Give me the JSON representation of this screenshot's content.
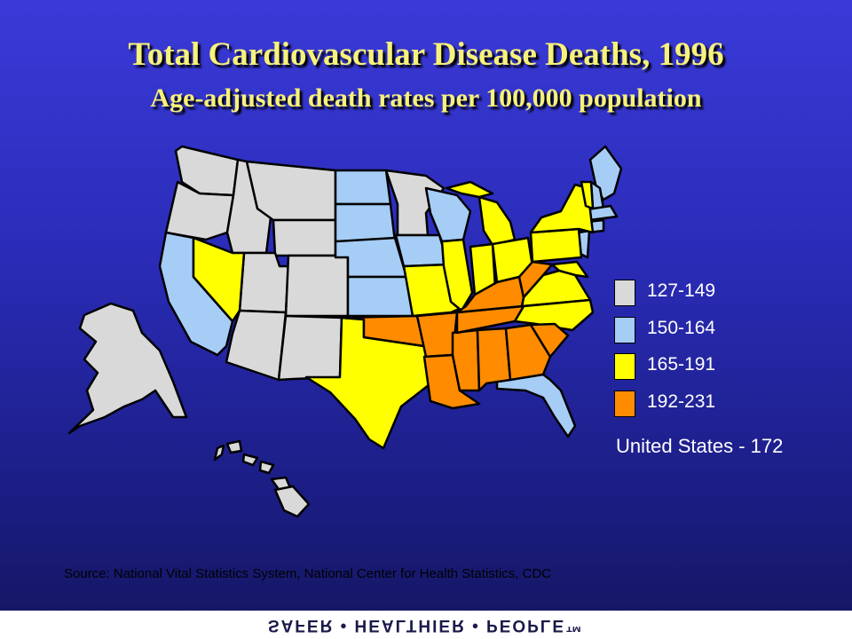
{
  "title": "Total Cardiovascular Disease Deaths, 1996",
  "subtitle": "Age-adjusted death rates per 100,000 population",
  "colors": {
    "c1": "#d9d9d9",
    "c2": "#a6cdf6",
    "c3": "#ffff00",
    "c4": "#ff8c00"
  },
  "legend": [
    {
      "label": "127-149",
      "color": "#d9d9d9"
    },
    {
      "label": "150-164",
      "color": "#a6cdf6"
    },
    {
      "label": "165-191",
      "color": "#ffff00"
    },
    {
      "label": "192-231",
      "color": "#ff8c00"
    }
  ],
  "us_average": "United States - 172",
  "source": "Source:  National Vital Statistics System, National Center for Health Statistics, CDC",
  "footer": "SAFER • HEALTHIER • PEOPLE™"
}
